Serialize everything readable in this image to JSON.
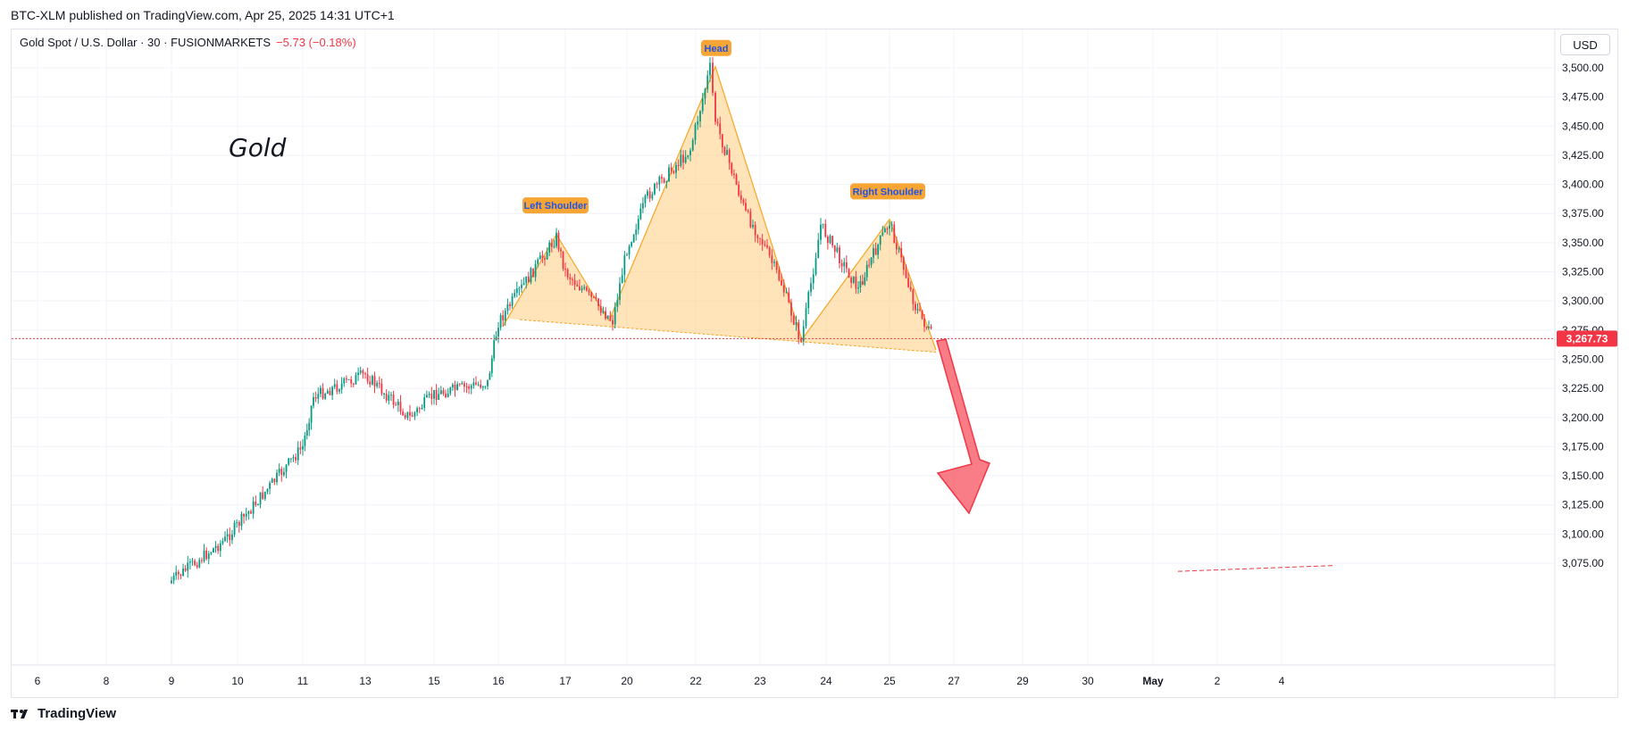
{
  "header": {
    "published": "BTC-XLM published on TradingView.com, Apr 25, 2025 14:31 UTC+1"
  },
  "legend": {
    "symbol": "Gold Spot / U.S. Dollar · 30 · FUSIONMARKETS",
    "change": "−5.73 (−0.18%)"
  },
  "currency_button": "USD",
  "brand": "TradingView",
  "colors": {
    "up": "#089981",
    "down": "#f23645",
    "pattern_fill": "#ffcc80",
    "pattern_line": "#f5a623",
    "label_bg": "#f7a534",
    "label_text": "#1e53e5",
    "arrow": "#f7525f"
  },
  "chart_data": {
    "type": "candlestick",
    "title": "Gold",
    "symbol": "XAUUSD",
    "timeframe": "30",
    "ylim": [
      3060,
      3510
    ],
    "y_ticks": [
      "3,075.00",
      "3,100.00",
      "3,125.00",
      "3,150.00",
      "3,175.00",
      "3,200.00",
      "3,225.00",
      "3,250.00",
      "3,275.00",
      "3,300.00",
      "3,325.00",
      "3,350.00",
      "3,375.00",
      "3,400.00",
      "3,425.00",
      "3,450.00",
      "3,475.00",
      "3,500.00"
    ],
    "x_ticks": [
      "6",
      "8",
      "9",
      "10",
      "11",
      "13",
      "15",
      "16",
      "17",
      "20",
      "22",
      "23",
      "24",
      "25",
      "27",
      "29",
      "30",
      "May",
      "2",
      "4"
    ],
    "last_price": "3,267.73",
    "price_path": [
      [
        "Apr 9",
        3060
      ],
      [
        "Apr 10",
        3095
      ],
      [
        "Apr 11",
        3175
      ],
      [
        "Apr 11",
        3218
      ],
      [
        "Apr 13",
        3237
      ],
      [
        "Apr 14",
        3200
      ],
      [
        "Apr 15",
        3220
      ],
      [
        "Apr 16",
        3230
      ],
      [
        "Apr 16",
        3282
      ],
      [
        "Apr 17",
        3355
      ],
      [
        "Apr 17",
        3325
      ],
      [
        "Apr 18",
        3283
      ],
      [
        "Apr 20",
        3345
      ],
      [
        "Apr 20",
        3390
      ],
      [
        "Apr 21",
        3430
      ],
      [
        "Apr 22",
        3500
      ],
      [
        "Apr 22",
        3455
      ],
      [
        "Apr 23",
        3375
      ],
      [
        "Apr 23",
        3355
      ],
      [
        "Apr 23",
        3315
      ],
      [
        "Apr 23",
        3265
      ],
      [
        "Apr 24",
        3365
      ],
      [
        "Apr 24",
        3310
      ],
      [
        "Apr 24",
        3340
      ],
      [
        "Apr 25",
        3368
      ],
      [
        "Apr 25",
        3295
      ],
      [
        "Apr 25",
        3267.73
      ]
    ],
    "annotations": [
      {
        "text": "Left Shoulder",
        "price": 3357
      },
      {
        "text": "Head",
        "price": 3501
      },
      {
        "text": "Right Shoulder",
        "price": 3370
      },
      {
        "text": "Gold"
      }
    ],
    "grid": true
  }
}
